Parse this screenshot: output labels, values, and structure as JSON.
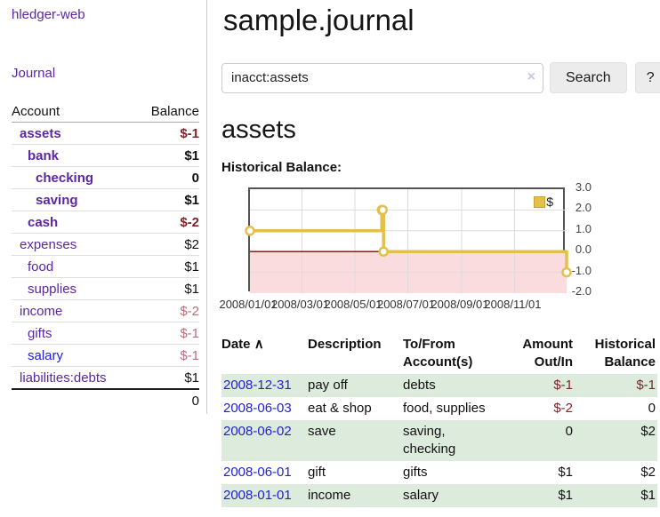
{
  "app": {
    "brand": "hledger-web"
  },
  "sidebar": {
    "journal_link": "Journal",
    "accounts": {
      "header": {
        "account": "Account",
        "balance": "Balance"
      },
      "rows": [
        {
          "name": "assets",
          "balance": "$-1",
          "depth": 1,
          "emphasized": true
        },
        {
          "name": "bank",
          "balance": "$1",
          "depth": 2,
          "emphasized": true
        },
        {
          "name": "checking",
          "balance": "0",
          "depth": 3,
          "emphasized": true
        },
        {
          "name": "saving",
          "balance": "$1",
          "depth": 3,
          "emphasized": true
        },
        {
          "name": "cash",
          "balance": "$-2",
          "depth": 2,
          "emphasized": true
        },
        {
          "name": "expenses",
          "balance": "$2",
          "depth": 1,
          "emphasized": false
        },
        {
          "name": "food",
          "balance": "$1",
          "depth": 2,
          "emphasized": false
        },
        {
          "name": "supplies",
          "balance": "$1",
          "depth": 2,
          "emphasized": false
        },
        {
          "name": "income",
          "balance": "$-2",
          "depth": 1,
          "emphasized": false
        },
        {
          "name": "gifts",
          "balance": "$-1",
          "depth": 2,
          "emphasized": false
        },
        {
          "name": "salary",
          "balance": "$-1",
          "depth": 2,
          "emphasized": false
        },
        {
          "name": "liabilities:debts",
          "balance": "$1",
          "depth": 1,
          "emphasized": false
        }
      ],
      "total": "0"
    }
  },
  "main": {
    "title": "sample.journal",
    "search": {
      "value": "inacct:assets",
      "clear_icon": "×",
      "search_button": "Search",
      "help_button": "?"
    },
    "heading": "assets",
    "chart_title": "Historical Balance:"
  },
  "chart_data": {
    "type": "line",
    "step": true,
    "title": "Historical Balance:",
    "legend": [
      {
        "label": "$",
        "color": "#e5bf4b"
      }
    ],
    "legend_position": "top-right",
    "grid": true,
    "ylim": [
      -2,
      3
    ],
    "y_ticks": [
      3.0,
      2.0,
      1.0,
      0.0,
      -1.0,
      -2.0
    ],
    "x_domain_days": [
      0,
      365
    ],
    "x_ticks": [
      {
        "label": "2008/01/01",
        "day": 0
      },
      {
        "label": "2008/03/01",
        "day": 60
      },
      {
        "label": "2008/05/01",
        "day": 121
      },
      {
        "label": "2008/07/01",
        "day": 182
      },
      {
        "label": "2008/09/01",
        "day": 244
      },
      {
        "label": "2008/11/01",
        "day": 305
      }
    ],
    "series": [
      {
        "name": "$",
        "color": "#e5bf4b",
        "points": [
          {
            "date": "2008-01-01",
            "day": 0,
            "value": 1
          },
          {
            "date": "2008-06-01",
            "day": 152,
            "value": 2
          },
          {
            "date": "2008-06-02",
            "day": 153,
            "value": 2
          },
          {
            "date": "2008-06-03",
            "day": 154,
            "value": 0
          },
          {
            "date": "2008-12-31",
            "day": 365,
            "value": -1
          }
        ]
      }
    ],
    "negative_region_color": "#fadbde",
    "zero_line_color": "#8b0000",
    "grid_color": "#dcdcdc"
  },
  "register": {
    "headers": {
      "date": "Date",
      "sort_indicator": "∧",
      "description": "Description",
      "accounts": "To/From\nAccount(s)",
      "amount": "Amount\nOut/In",
      "balance": "Historical\nBalance"
    },
    "rows": [
      {
        "date": "2008-12-31",
        "description": "pay off",
        "accounts": "debts",
        "amount": "$-1",
        "balance": "$-1"
      },
      {
        "date": "2008-06-03",
        "description": "eat & shop",
        "accounts": "food, supplies",
        "amount": "$-2",
        "balance": "0"
      },
      {
        "date": "2008-06-02",
        "description": "save",
        "accounts": "saving,\nchecking",
        "amount": "0",
        "balance": "$2"
      },
      {
        "date": "2008-06-01",
        "description": "gift",
        "accounts": "gifts",
        "amount": "$1",
        "balance": "$2"
      },
      {
        "date": "2008-01-01",
        "description": "income",
        "accounts": "salary",
        "amount": "$1",
        "balance": "$1"
      }
    ]
  }
}
